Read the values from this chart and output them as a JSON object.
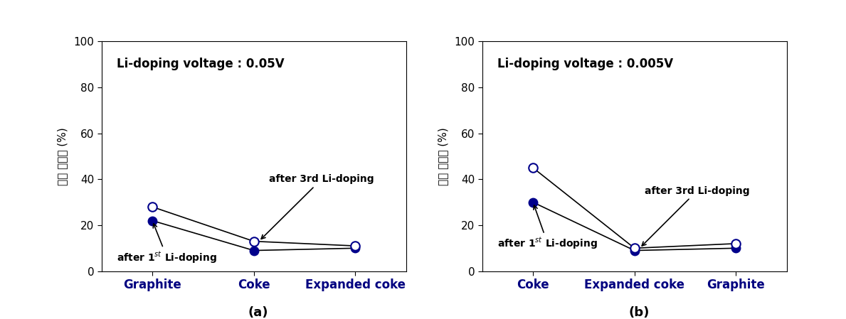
{
  "panel_a": {
    "title": "Li-doping voltage : 0.05V",
    "xlabel_categories": [
      "Graphite",
      "Coke",
      "Expanded coke"
    ],
    "series_1st": [
      22,
      9,
      10
    ],
    "series_3rd": [
      28,
      13,
      11
    ],
    "ylim": [
      0,
      100
    ],
    "yticks": [
      0,
      20,
      40,
      60,
      80,
      100
    ]
  },
  "panel_b": {
    "title": "Li-doping voltage : 0.005V",
    "xlabel_categories": [
      "Coke",
      "Expanded coke",
      "Graphite"
    ],
    "series_1st": [
      30,
      9,
      10
    ],
    "series_3rd": [
      45,
      10,
      12
    ],
    "ylim": [
      0,
      100
    ],
    "yticks": [
      0,
      20,
      40,
      60,
      80,
      100
    ]
  },
  "ylabel": "두께 변화율 (%)",
  "color_filled": "#00008B",
  "color_open": "#00008B",
  "label_a": "(a)",
  "label_b": "(b)",
  "ann1_text": "after 1$^{st}$ Li-doping",
  "ann3_text": "after 3rd Li-doping"
}
